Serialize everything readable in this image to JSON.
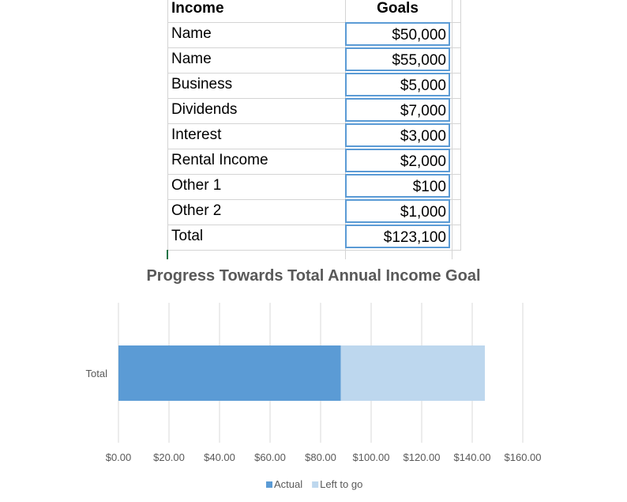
{
  "sheet": {
    "header": {
      "label": "Income",
      "goal": "Goals"
    },
    "rows": [
      {
        "label": "Name",
        "goal": "$50,000"
      },
      {
        "label": "Name",
        "goal": "$55,000"
      },
      {
        "label": "Business",
        "goal": "$5,000"
      },
      {
        "label": "Dividends",
        "goal": "$7,000"
      },
      {
        "label": "Interest",
        "goal": "$3,000"
      },
      {
        "label": "Rental Income",
        "goal": "$2,000"
      },
      {
        "label": "Other 1",
        "goal": "$100"
      },
      {
        "label": "Other 2",
        "goal": "$1,000"
      },
      {
        "label": "Total",
        "goal": "$123,100"
      }
    ]
  },
  "chart_data": {
    "type": "bar",
    "orientation": "horizontal",
    "stacked": true,
    "title": "Progress Towards Total Annual Income Goal",
    "categories": [
      "Total"
    ],
    "series": [
      {
        "name": "Actual",
        "values": [
          88
        ],
        "color": "#5b9bd5"
      },
      {
        "name": "Left to go",
        "values": [
          57
        ],
        "color": "#bdd7ee"
      }
    ],
    "xlim": [
      0,
      160
    ],
    "ticks": [
      "$0.00",
      "$20.00",
      "$40.00",
      "$60.00",
      "$80.00",
      "$100.00",
      "$120.00",
      "$140.00",
      "$160.00"
    ],
    "grid": true,
    "legend": "bottom"
  }
}
